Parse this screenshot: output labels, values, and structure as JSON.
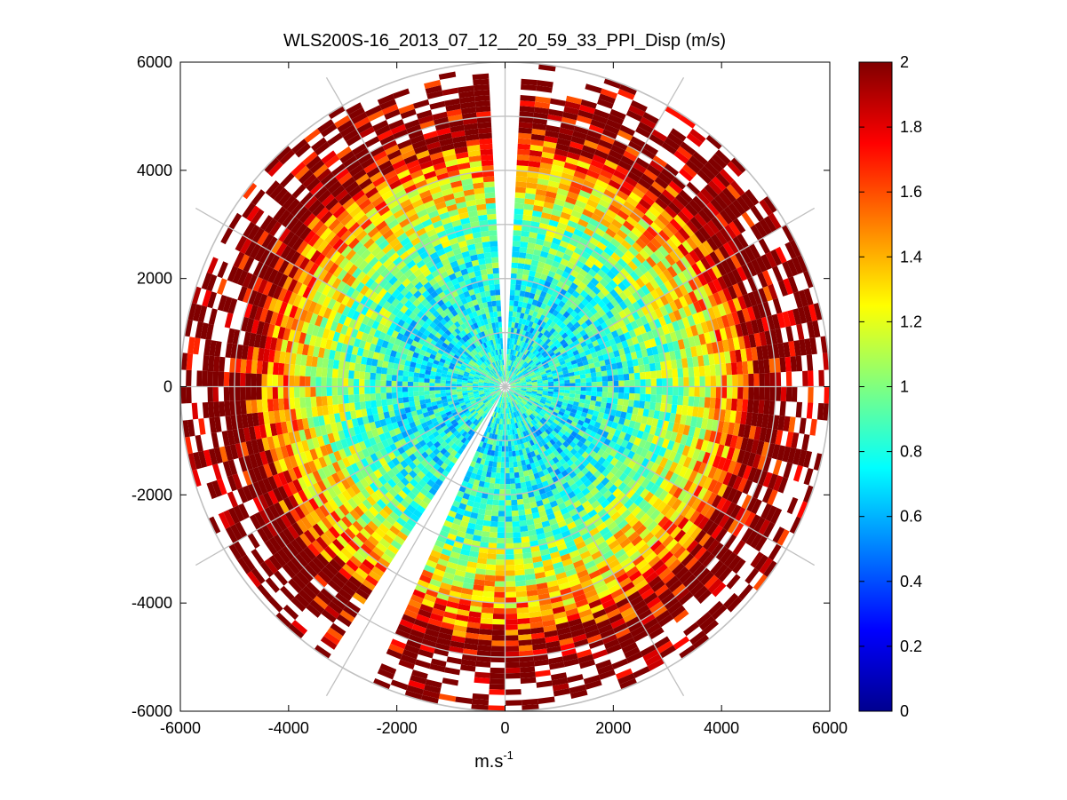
{
  "chart_data": {
    "type": "heatmap",
    "subtype": "polar-ppi",
    "title": "WLS200S-16_2013_07_12__20_59_33_PPI_Disp (m/s)",
    "xlabel_base": "m.s",
    "xlabel_exp": "-1",
    "ylabel": "",
    "xlim": [
      -6000,
      6000
    ],
    "ylim": [
      -6000,
      6000
    ],
    "xticks": [
      -6000,
      -4000,
      -2000,
      0,
      2000,
      4000,
      6000
    ],
    "yticks": [
      -6000,
      -4000,
      -2000,
      0,
      2000,
      4000,
      6000
    ],
    "xtick_labels": [
      "-6000",
      "-4000",
      "-2000",
      "0",
      "2000",
      "4000",
      "6000"
    ],
    "ytick_labels": [
      "6000",
      "4000",
      "2000",
      "0",
      "-2000",
      "-4000",
      "-6000"
    ],
    "max_range": 6000,
    "range_ring_spacing": 1000,
    "spoke_angles_deg": [
      0,
      30,
      60,
      90,
      120,
      150,
      180,
      210,
      240,
      270,
      300,
      330
    ],
    "missing_sectors_deg": [
      [
        -4,
        4
      ],
      [
        205,
        212
      ]
    ],
    "colorbar": {
      "colormap": "jet",
      "range": [
        0,
        2
      ],
      "ticks": [
        0,
        0.2,
        0.4,
        0.6,
        0.8,
        1,
        1.2,
        1.4,
        1.6,
        1.8,
        2
      ],
      "tick_labels": [
        "0",
        "0.2",
        "0.4",
        "0.6",
        "0.8",
        "1",
        "1.2",
        "1.4",
        "1.6",
        "1.8",
        "2"
      ]
    },
    "radial_profile": {
      "range_m": [
        0,
        1000,
        2000,
        3000,
        4000,
        5000,
        6000
      ],
      "typical_disp_ms": [
        0.9,
        0.75,
        0.8,
        1.0,
        1.4,
        1.9,
        2.0
      ]
    }
  }
}
